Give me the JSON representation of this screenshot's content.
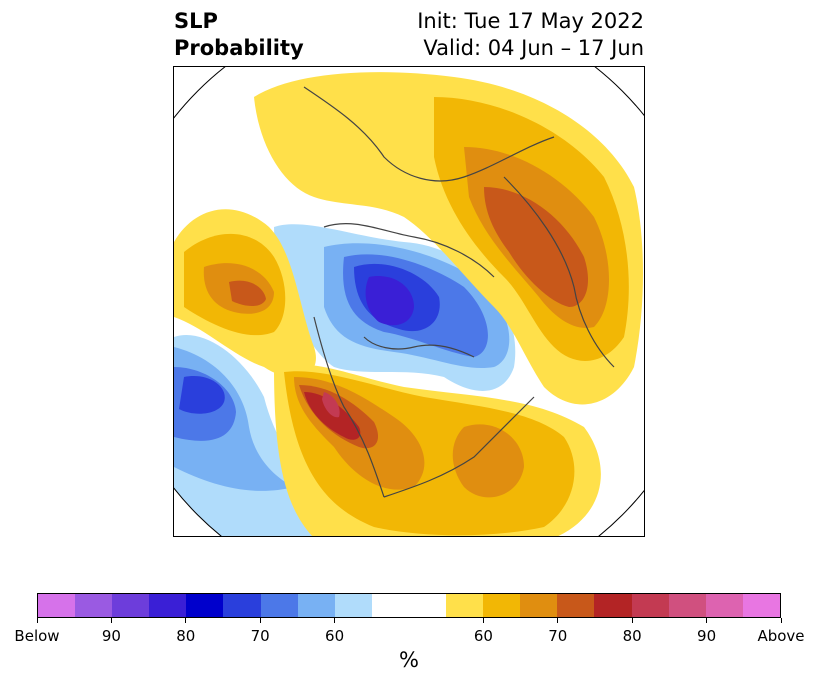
{
  "title": {
    "left_line1": "SLP",
    "left_line2": "Probability",
    "right_line1": "Init: Tue 17 May 2022",
    "right_line2": "Valid: 04 Jun – 17 Jun"
  },
  "colorbar": {
    "unit": "%",
    "segments": [
      {
        "color": "#d672ea"
      },
      {
        "color": "#9a5ae2"
      },
      {
        "color": "#6d3ddb"
      },
      {
        "color": "#3a1fd6"
      },
      {
        "color": "#0000cc"
      },
      {
        "color": "#2a3fdc"
      },
      {
        "color": "#4c78e8"
      },
      {
        "color": "#78b1f3"
      },
      {
        "color": "#b0dcfb"
      },
      {
        "color": "#ffffff",
        "wide": true
      },
      {
        "color": "#ffe04a"
      },
      {
        "color": "#f2b705"
      },
      {
        "color": "#e08e10"
      },
      {
        "color": "#c8581a"
      },
      {
        "color": "#b32425"
      },
      {
        "color": "#c33a52"
      },
      {
        "color": "#d0507f"
      },
      {
        "color": "#dd63b0"
      },
      {
        "color": "#e876e2"
      }
    ],
    "ticks": [
      "Below",
      "90",
      "80",
      "70",
      "60",
      "60",
      "70",
      "80",
      "90",
      "Above"
    ]
  },
  "map": {
    "description_colors": {
      "above_light": "#ffe04a",
      "above_mid": "#f2b705",
      "above_strong": "#e08e10",
      "above_high": "#c8581a",
      "above_max": "#b32425",
      "below_light": "#b0dcfb",
      "below_mid": "#78b1f3",
      "below_strong": "#4c78e8",
      "below_high": "#2a3fdc",
      "below_max": "#3a1fd6"
    }
  }
}
